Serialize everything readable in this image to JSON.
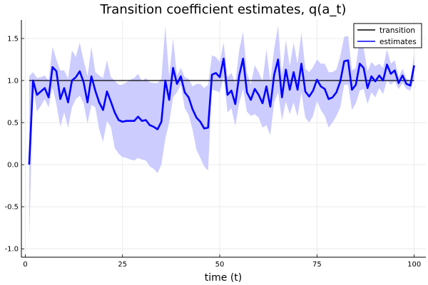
{
  "chart_data": {
    "type": "line",
    "title": "Transition coefficient estimates, q(a_t)",
    "xlabel": "time (t)",
    "ylabel": "",
    "xlim": [
      -1,
      103
    ],
    "ylim": [
      -1.1,
      1.72
    ],
    "xticks": [
      0,
      25,
      50,
      75,
      100
    ],
    "yticks": [
      -1.0,
      -0.5,
      0.0,
      0.5,
      1.0,
      1.5
    ],
    "xtick_labels": [
      "0",
      "25",
      "50",
      "75",
      "100"
    ],
    "ytick_labels": [
      "-1.0",
      "-0.5",
      "0.0",
      "0.5",
      "1.0",
      "1.5"
    ],
    "grid": true,
    "legend_position": "top-right",
    "legend": [
      {
        "label": "transition",
        "color": "#000000"
      },
      {
        "label": "estimates",
        "color": "#0000ff"
      }
    ],
    "colors": {
      "transition": "#000000",
      "estimates": "#0000ff",
      "band": "#ccccff"
    },
    "series": [
      {
        "name": "transition",
        "x": [
          1,
          100
        ],
        "y": [
          1.0,
          1.0
        ]
      },
      {
        "name": "estimates",
        "x": [
          1,
          2,
          3,
          4,
          5,
          6,
          7,
          8,
          9,
          10,
          11,
          12,
          13,
          14,
          15,
          16,
          17,
          18,
          19,
          20,
          21,
          22,
          23,
          24,
          25,
          26,
          27,
          28,
          29,
          30,
          31,
          32,
          33,
          34,
          35,
          36,
          37,
          38,
          39,
          40,
          41,
          42,
          43,
          44,
          45,
          46,
          47,
          48,
          49,
          50,
          51,
          52,
          53,
          54,
          55,
          56,
          57,
          58,
          59,
          60,
          61,
          62,
          63,
          64,
          65,
          66,
          67,
          68,
          69,
          70,
          71,
          72,
          73,
          74,
          75,
          76,
          77,
          78,
          79,
          80,
          81,
          82,
          83,
          84,
          85,
          86,
          87,
          88,
          89,
          90,
          91,
          92,
          93,
          94,
          95,
          96,
          97,
          98,
          99,
          100
        ],
        "y": [
          0.0,
          1.0,
          0.83,
          0.87,
          0.91,
          0.8,
          1.16,
          1.11,
          0.78,
          0.91,
          0.74,
          1.0,
          1.04,
          1.11,
          0.98,
          0.74,
          1.05,
          0.88,
          0.74,
          0.65,
          0.87,
          0.75,
          0.62,
          0.53,
          0.51,
          0.52,
          0.52,
          0.52,
          0.57,
          0.52,
          0.53,
          0.47,
          0.45,
          0.42,
          0.51,
          1.0,
          0.77,
          1.15,
          0.96,
          1.05,
          0.86,
          0.8,
          0.66,
          0.56,
          0.51,
          0.43,
          0.44,
          1.07,
          1.09,
          1.04,
          1.26,
          0.83,
          0.88,
          0.72,
          1.06,
          1.26,
          0.86,
          0.77,
          0.9,
          0.83,
          0.73,
          0.93,
          0.69,
          1.07,
          1.25,
          0.8,
          1.13,
          0.89,
          1.1,
          0.89,
          1.2,
          0.87,
          0.81,
          0.88,
          1.01,
          0.93,
          0.9,
          0.78,
          0.8,
          0.86,
          0.99,
          1.23,
          1.24,
          0.89,
          0.95,
          1.2,
          1.15,
          0.91,
          1.05,
          0.99,
          1.06,
          1.0,
          1.19,
          1.08,
          1.12,
          0.97,
          1.06,
          0.96,
          0.94,
          1.18
        ],
        "lower": [
          -0.92,
          0.92,
          0.63,
          0.7,
          0.78,
          0.68,
          0.92,
          0.72,
          0.45,
          0.62,
          0.44,
          0.68,
          0.78,
          0.82,
          0.73,
          0.49,
          0.71,
          0.68,
          0.42,
          0.27,
          0.52,
          0.45,
          0.2,
          0.13,
          0.09,
          0.08,
          0.06,
          0.05,
          0.08,
          0.06,
          0.05,
          -0.02,
          -0.05,
          -0.1,
          0.0,
          0.31,
          0.5,
          0.8,
          0.86,
          0.95,
          0.67,
          0.59,
          0.42,
          0.18,
          0.08,
          -0.02,
          -0.07,
          0.89,
          0.88,
          0.86,
          1.04,
          0.62,
          0.67,
          0.46,
          0.73,
          0.9,
          0.63,
          0.58,
          0.6,
          0.56,
          0.44,
          0.47,
          0.35,
          0.74,
          0.86,
          0.53,
          0.75,
          0.6,
          0.74,
          0.57,
          0.86,
          0.56,
          0.5,
          0.58,
          0.76,
          0.65,
          0.58,
          0.44,
          0.5,
          0.58,
          0.68,
          0.95,
          0.95,
          0.65,
          0.73,
          0.88,
          0.9,
          0.72,
          0.86,
          0.8,
          0.91,
          0.84,
          1.0,
          0.95,
          0.99,
          0.9,
          0.97,
          0.9,
          0.88,
          1.03
        ],
        "upper": [
          1.05,
          1.1,
          1.03,
          1.04,
          1.06,
          1.0,
          1.4,
          1.25,
          1.12,
          1.12,
          1.02,
          1.36,
          1.28,
          1.45,
          1.24,
          1.05,
          1.4,
          1.1,
          1.06,
          1.03,
          1.24,
          1.04,
          1.0,
          0.95,
          0.95,
          0.98,
          1.01,
          1.03,
          1.08,
          0.99,
          1.03,
          0.98,
          0.97,
          0.97,
          1.02,
          1.65,
          1.05,
          1.5,
          1.06,
          1.15,
          1.04,
          1.02,
          0.93,
          0.96,
          0.96,
          0.91,
          0.95,
          1.3,
          1.28,
          1.22,
          1.45,
          1.04,
          1.09,
          0.97,
          1.36,
          1.58,
          1.09,
          0.96,
          1.18,
          1.1,
          0.99,
          1.37,
          0.99,
          1.38,
          1.65,
          1.07,
          1.48,
          1.17,
          1.45,
          1.2,
          1.57,
          1.14,
          1.1,
          1.16,
          1.25,
          1.2,
          1.2,
          1.1,
          1.1,
          1.13,
          1.29,
          1.52,
          1.53,
          1.12,
          1.15,
          1.52,
          1.39,
          1.11,
          1.22,
          1.17,
          1.2,
          1.15,
          1.37,
          1.2,
          1.24,
          1.04,
          1.14,
          1.02,
          0.99,
          1.33
        ]
      }
    ]
  }
}
